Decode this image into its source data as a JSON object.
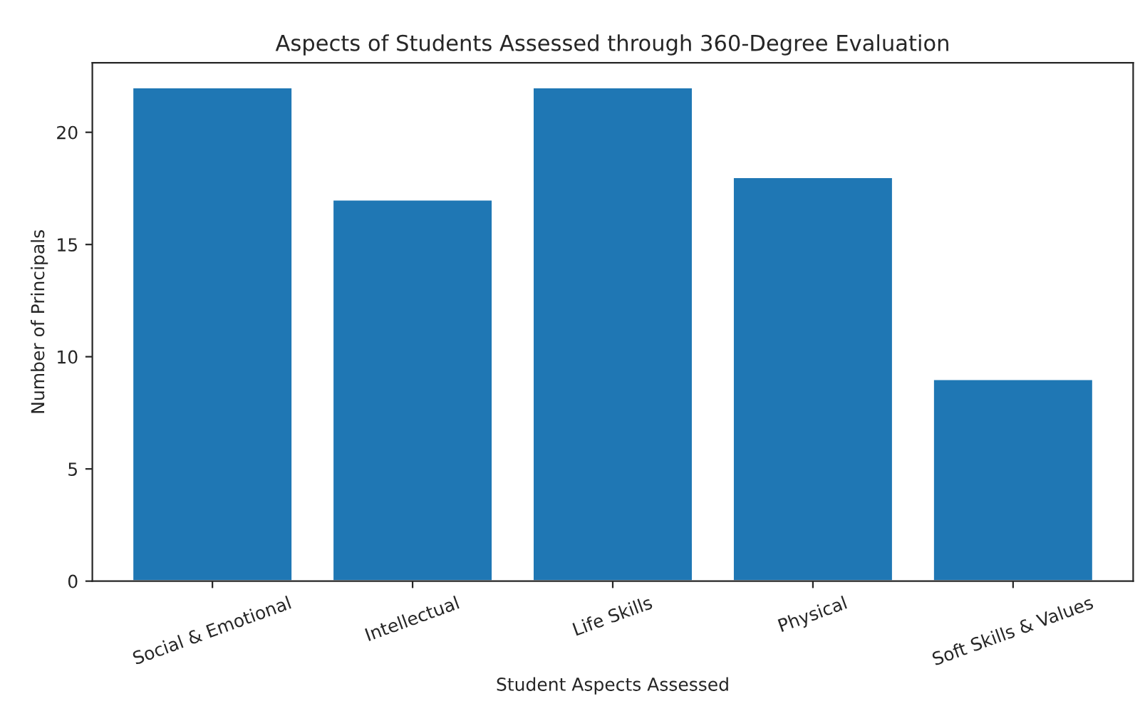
{
  "chart_data": {
    "type": "bar",
    "title": "Aspects of Students Assessed through 360-Degree Evaluation",
    "xlabel": "Student Aspects Assessed",
    "ylabel": "Number of Principals",
    "categories": [
      "Social & Emotional",
      "Intellectual",
      "Life Skills",
      "Physical",
      "Soft Skills & Values"
    ],
    "values": [
      22,
      17,
      22,
      18,
      9
    ],
    "color": "#1f77b4",
    "ylim": [
      0,
      23.1
    ],
    "yticks": [
      0,
      5,
      10,
      15,
      20
    ],
    "grid": false
  }
}
